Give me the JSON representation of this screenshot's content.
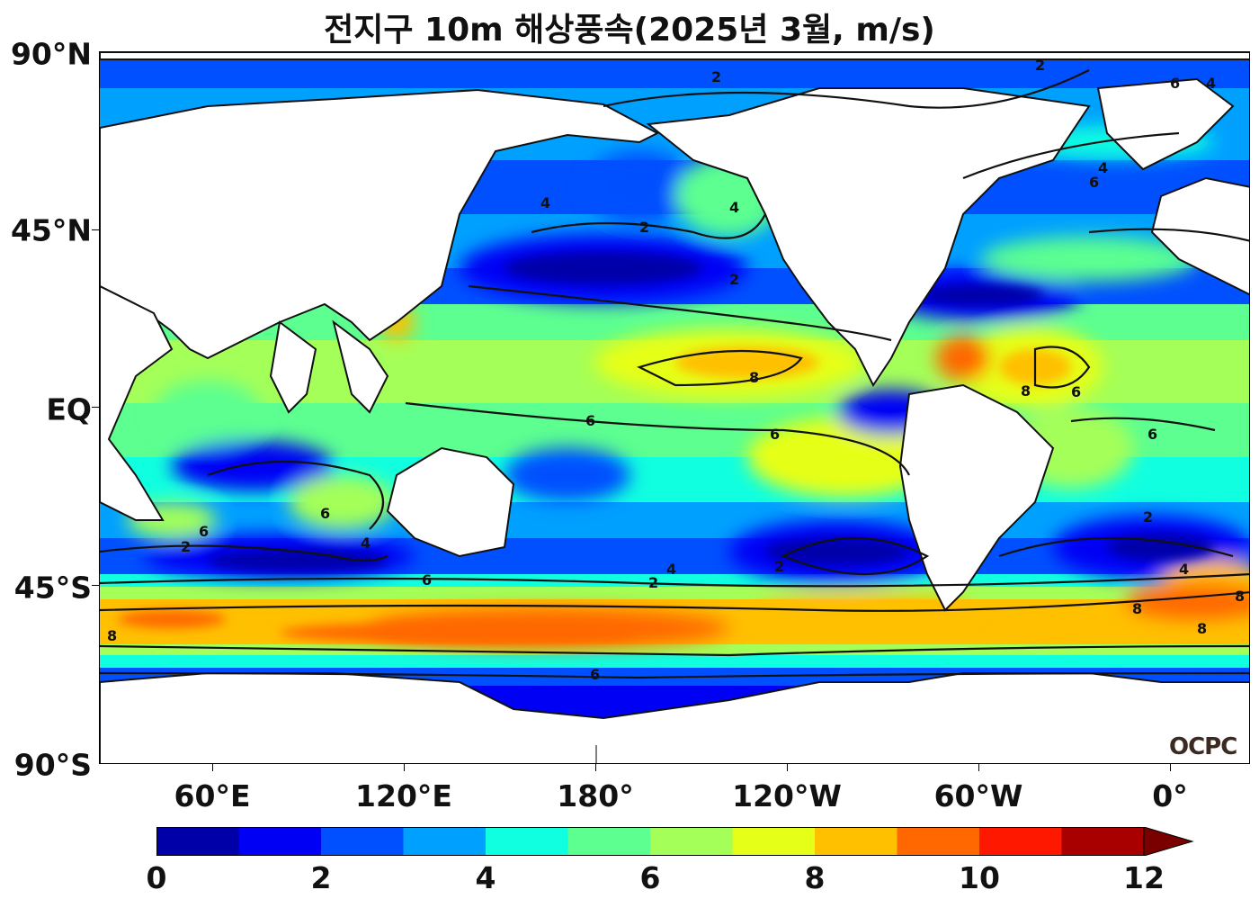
{
  "title": "전지구 10m 해상풍속(2025년 3월, m/s)",
  "axes": {
    "lat_labels": [
      "90°N",
      "45°N",
      "EQ",
      "45°S",
      "90°S"
    ],
    "lon_labels": [
      "60°E",
      "120°E",
      "180°",
      "120°W",
      "60°W",
      "0°"
    ]
  },
  "colorbar": {
    "min": 0,
    "max": 12,
    "step": 1,
    "extend": "max",
    "tick_labels": [
      "0",
      "2",
      "4",
      "6",
      "8",
      "10",
      "12"
    ],
    "colors": [
      "#0000a8",
      "#0000f5",
      "#0050ff",
      "#00a0ff",
      "#10ffe0",
      "#5cff90",
      "#a4ff58",
      "#e6ff18",
      "#ffc000",
      "#ff6800",
      "#ff1800",
      "#a80000"
    ],
    "extend_color": "#7a0000"
  },
  "logo": "OCPC",
  "contour_levels": [
    "2",
    "4",
    "6",
    "8"
  ]
}
